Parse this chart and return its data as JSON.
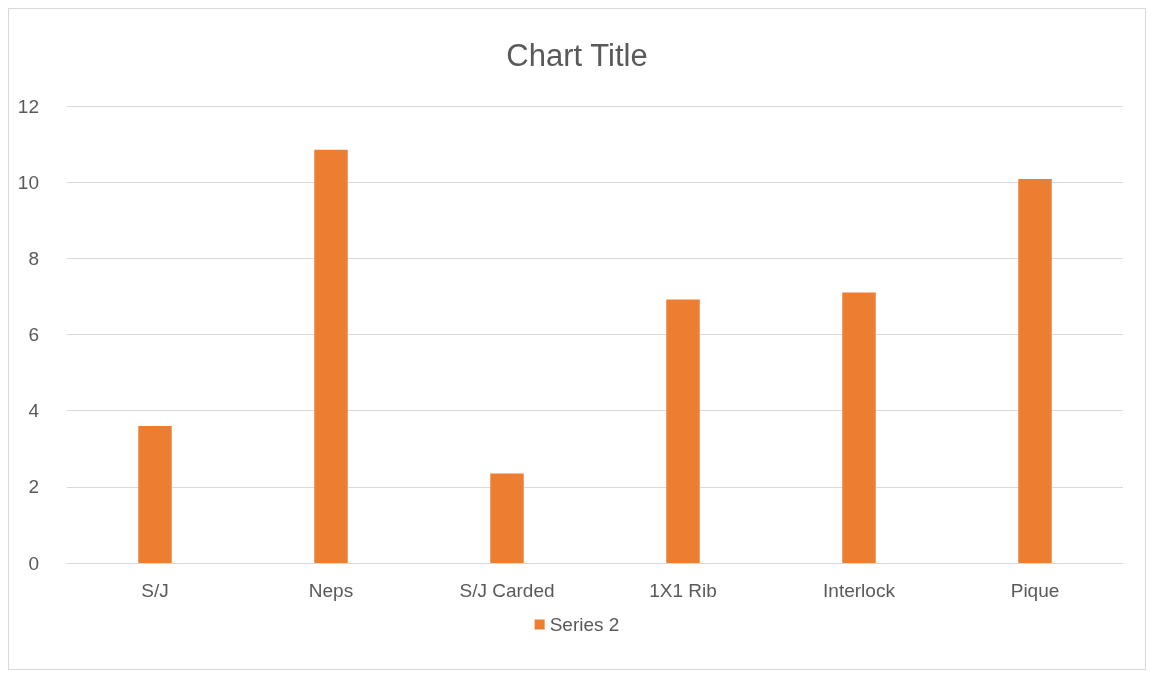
{
  "chart_data": {
    "type": "bar",
    "title": "Chart Title",
    "categories": [
      "S/J",
      "Neps",
      "S/J Carded",
      "1X1 Rib",
      "Interlock",
      "Pique"
    ],
    "series": [
      {
        "name": "Series 2",
        "color": "#ed7d31",
        "values": [
          3.6,
          10.85,
          2.35,
          6.92,
          7.1,
          10.08
        ]
      }
    ],
    "ylim": [
      0,
      12
    ],
    "yticks": [
      0,
      2,
      4,
      6,
      8,
      10,
      12
    ],
    "grid": "y",
    "legend": "bottom"
  }
}
